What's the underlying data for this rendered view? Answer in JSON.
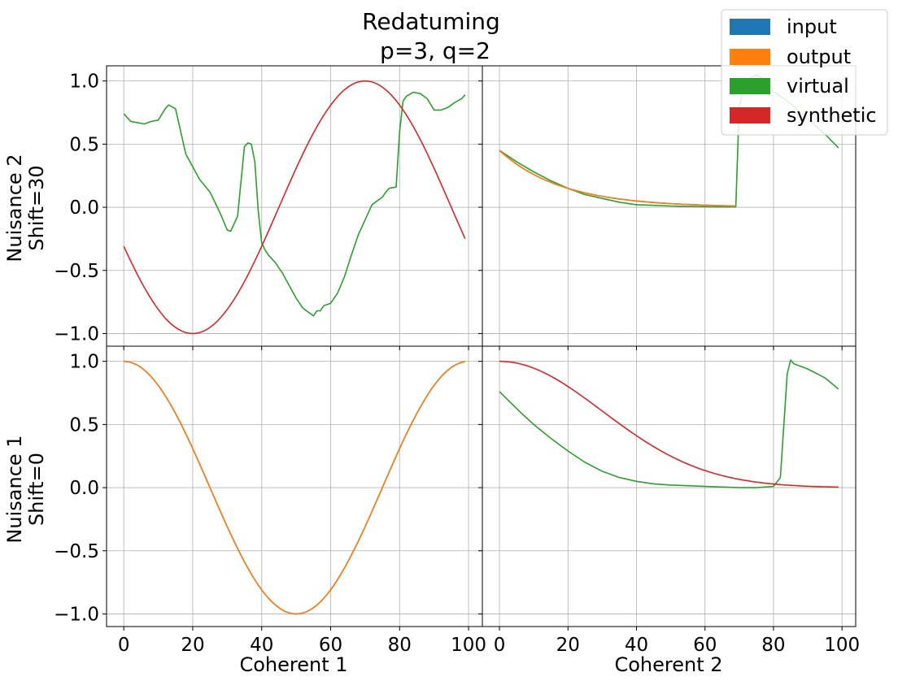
{
  "chart_data": {
    "type": "line",
    "title": [
      "Redatuming",
      "p=3, q=2"
    ],
    "legend": {
      "placement": "top-right",
      "entries": [
        {
          "name": "input",
          "color": "#1f77b4"
        },
        {
          "name": "output",
          "color": "#ff7f0e"
        },
        {
          "name": "virtual",
          "color": "#2ca02c"
        },
        {
          "name": "synthetic",
          "color": "#d62728"
        }
      ]
    },
    "grid": true,
    "xlim": [
      -5,
      104
    ],
    "ylim": [
      -1.1,
      1.12
    ],
    "xticks": [
      "0",
      "20",
      "40",
      "60",
      "80",
      "100"
    ],
    "yticks": [
      "1.0",
      "0.5",
      "0.0",
      "−0.5",
      "−1.0"
    ],
    "xlabels": [
      "Coherent 1",
      "Coherent 2"
    ],
    "ylabels": [
      [
        "Nuisance 2",
        "Shift=30"
      ],
      [
        "Nuisance 1",
        "Shift=0"
      ]
    ],
    "panels": [
      {
        "row": 0,
        "col": 0,
        "series": [
          {
            "name": "virtual",
            "color": "#2ca02c",
            "x": [
              0,
              2,
              4,
              6,
              8,
              10,
              12,
              13,
              15,
              18,
              20,
              22,
              25,
              28,
              30,
              31,
              33,
              35,
              36,
              37,
              38,
              39,
              40,
              41,
              42,
              44,
              46,
              48,
              50,
              52,
              54,
              55,
              56,
              57,
              58,
              60,
              62,
              64,
              66,
              68,
              70,
              72,
              74,
              75,
              76,
              77,
              79,
              80,
              81,
              82,
              84,
              86,
              88,
              90,
              92,
              94,
              96,
              98,
              99
            ],
            "y": [
              0.74,
              0.68,
              0.67,
              0.66,
              0.68,
              0.69,
              0.78,
              0.81,
              0.78,
              0.42,
              0.32,
              0.22,
              0.12,
              -0.05,
              -0.18,
              -0.19,
              -0.07,
              0.48,
              0.51,
              0.5,
              0.36,
              -0.03,
              -0.28,
              -0.34,
              -0.38,
              -0.44,
              -0.52,
              -0.62,
              -0.72,
              -0.8,
              -0.84,
              -0.86,
              -0.82,
              -0.82,
              -0.78,
              -0.76,
              -0.68,
              -0.55,
              -0.38,
              -0.22,
              -0.1,
              0.02,
              0.06,
              0.08,
              0.12,
              0.15,
              0.16,
              0.6,
              0.84,
              0.88,
              0.91,
              0.9,
              0.86,
              0.77,
              0.77,
              0.79,
              0.83,
              0.86,
              0.89
            ]
          },
          {
            "name": "synthetic",
            "color": "#d62728",
            "fn": "cos",
            "phase": 70,
            "shift": -0.3,
            "x": [
              0,
              99
            ]
          }
        ]
      },
      {
        "row": 0,
        "col": 1,
        "series": [
          {
            "name": "virtual",
            "color": "#2ca02c",
            "x": [
              0,
              5,
              10,
              15,
              20,
              25,
              30,
              35,
              40,
              45,
              50,
              55,
              60,
              65,
              68,
              69,
              70,
              72,
              75,
              78,
              80,
              85,
              90,
              95,
              99
            ],
            "y": [
              0.45,
              0.36,
              0.28,
              0.21,
              0.15,
              0.1,
              0.07,
              0.04,
              0.02,
              0.015,
              0.01,
              0.006,
              0.004,
              0.002,
              0.002,
              0.002,
              0.8,
              1.0,
              1.05,
              1.0,
              0.92,
              0.82,
              0.7,
              0.58,
              0.47
            ]
          },
          {
            "name": "input",
            "color": "#1f77b4",
            "fn": "exp",
            "a": 0.45,
            "k": 0.055,
            "x": [
              0,
              69
            ]
          },
          {
            "name": "output",
            "color": "#ff7f0e",
            "fn": "exp",
            "a": 0.45,
            "k": 0.055,
            "x": [
              0,
              69
            ]
          }
        ]
      },
      {
        "row": 1,
        "col": 0,
        "series": [
          {
            "name": "input",
            "color": "#1f77b4",
            "fn": "cos",
            "phase": 0,
            "shift": 0,
            "x": [
              0,
              99
            ]
          },
          {
            "name": "output",
            "color": "#ff7f0e",
            "fn": "cos",
            "phase": 0,
            "shift": 0,
            "x": [
              0,
              99
            ]
          }
        ]
      },
      {
        "row": 1,
        "col": 1,
        "series": [
          {
            "name": "virtual",
            "color": "#2ca02c",
            "x": [
              0,
              3,
              6,
              10,
              15,
              20,
              25,
              30,
              35,
              40,
              45,
              50,
              55,
              60,
              65,
              70,
              75,
              80,
              82,
              84,
              85,
              86,
              90,
              95,
              99
            ],
            "y": [
              0.76,
              0.68,
              0.6,
              0.5,
              0.39,
              0.29,
              0.2,
              0.13,
              0.08,
              0.05,
              0.03,
              0.02,
              0.015,
              0.01,
              0.005,
              0.0,
              0.0,
              0.01,
              0.08,
              0.9,
              1.01,
              0.98,
              0.94,
              0.87,
              0.78
            ]
          },
          {
            "name": "synthetic",
            "color": "#d62728",
            "fn": "gauss",
            "sigma": 30,
            "x": [
              0,
              99
            ]
          }
        ]
      }
    ]
  }
}
